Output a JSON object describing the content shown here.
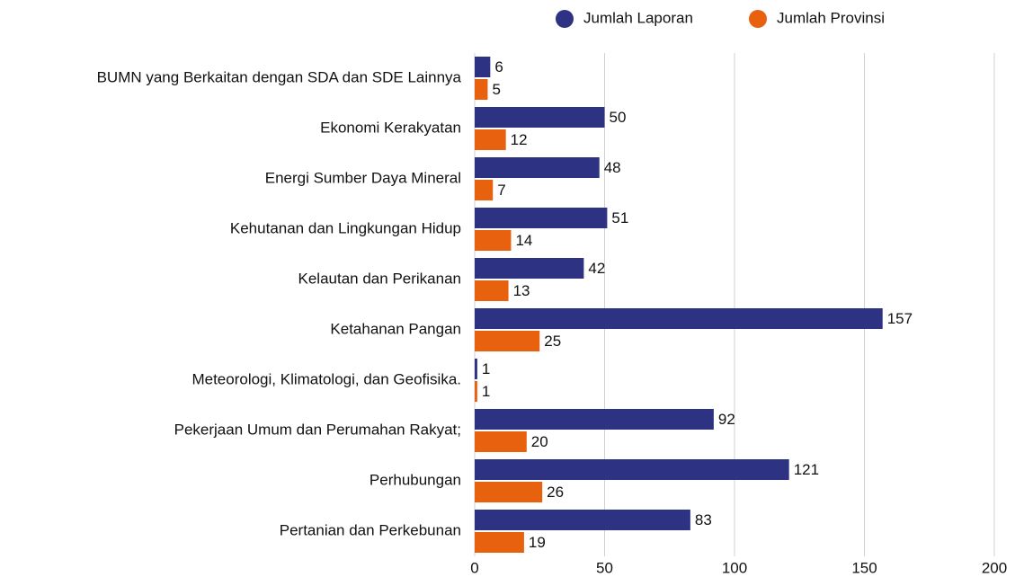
{
  "chart_data": {
    "type": "bar",
    "orientation": "horizontal",
    "categories": [
      "BUMN yang Berkaitan dengan SDA dan SDE Lainnya",
      "Ekonomi Kerakyatan",
      "Energi Sumber Daya Mineral",
      "Kehutanan dan Lingkungan Hidup",
      "Kelautan dan Perikanan",
      "Ketahanan Pangan",
      "Meteorologi, Klimatologi, dan Geofisika.",
      "Pekerjaan Umum dan Perumahan Rakyat;",
      "Perhubungan",
      "Pertanian dan Perkebunan"
    ],
    "series": [
      {
        "name": "Jumlah Laporan",
        "color": "#2e3283",
        "values": [
          6,
          50,
          48,
          51,
          42,
          157,
          1,
          92,
          121,
          83
        ]
      },
      {
        "name": "Jumlah Provinsi",
        "color": "#e8610f",
        "values": [
          5,
          12,
          7,
          14,
          13,
          25,
          1,
          20,
          26,
          19
        ]
      }
    ],
    "xlim": [
      0,
      200
    ],
    "xticks": [
      0,
      50,
      100,
      150,
      200
    ],
    "grid": true,
    "legend": "top"
  }
}
